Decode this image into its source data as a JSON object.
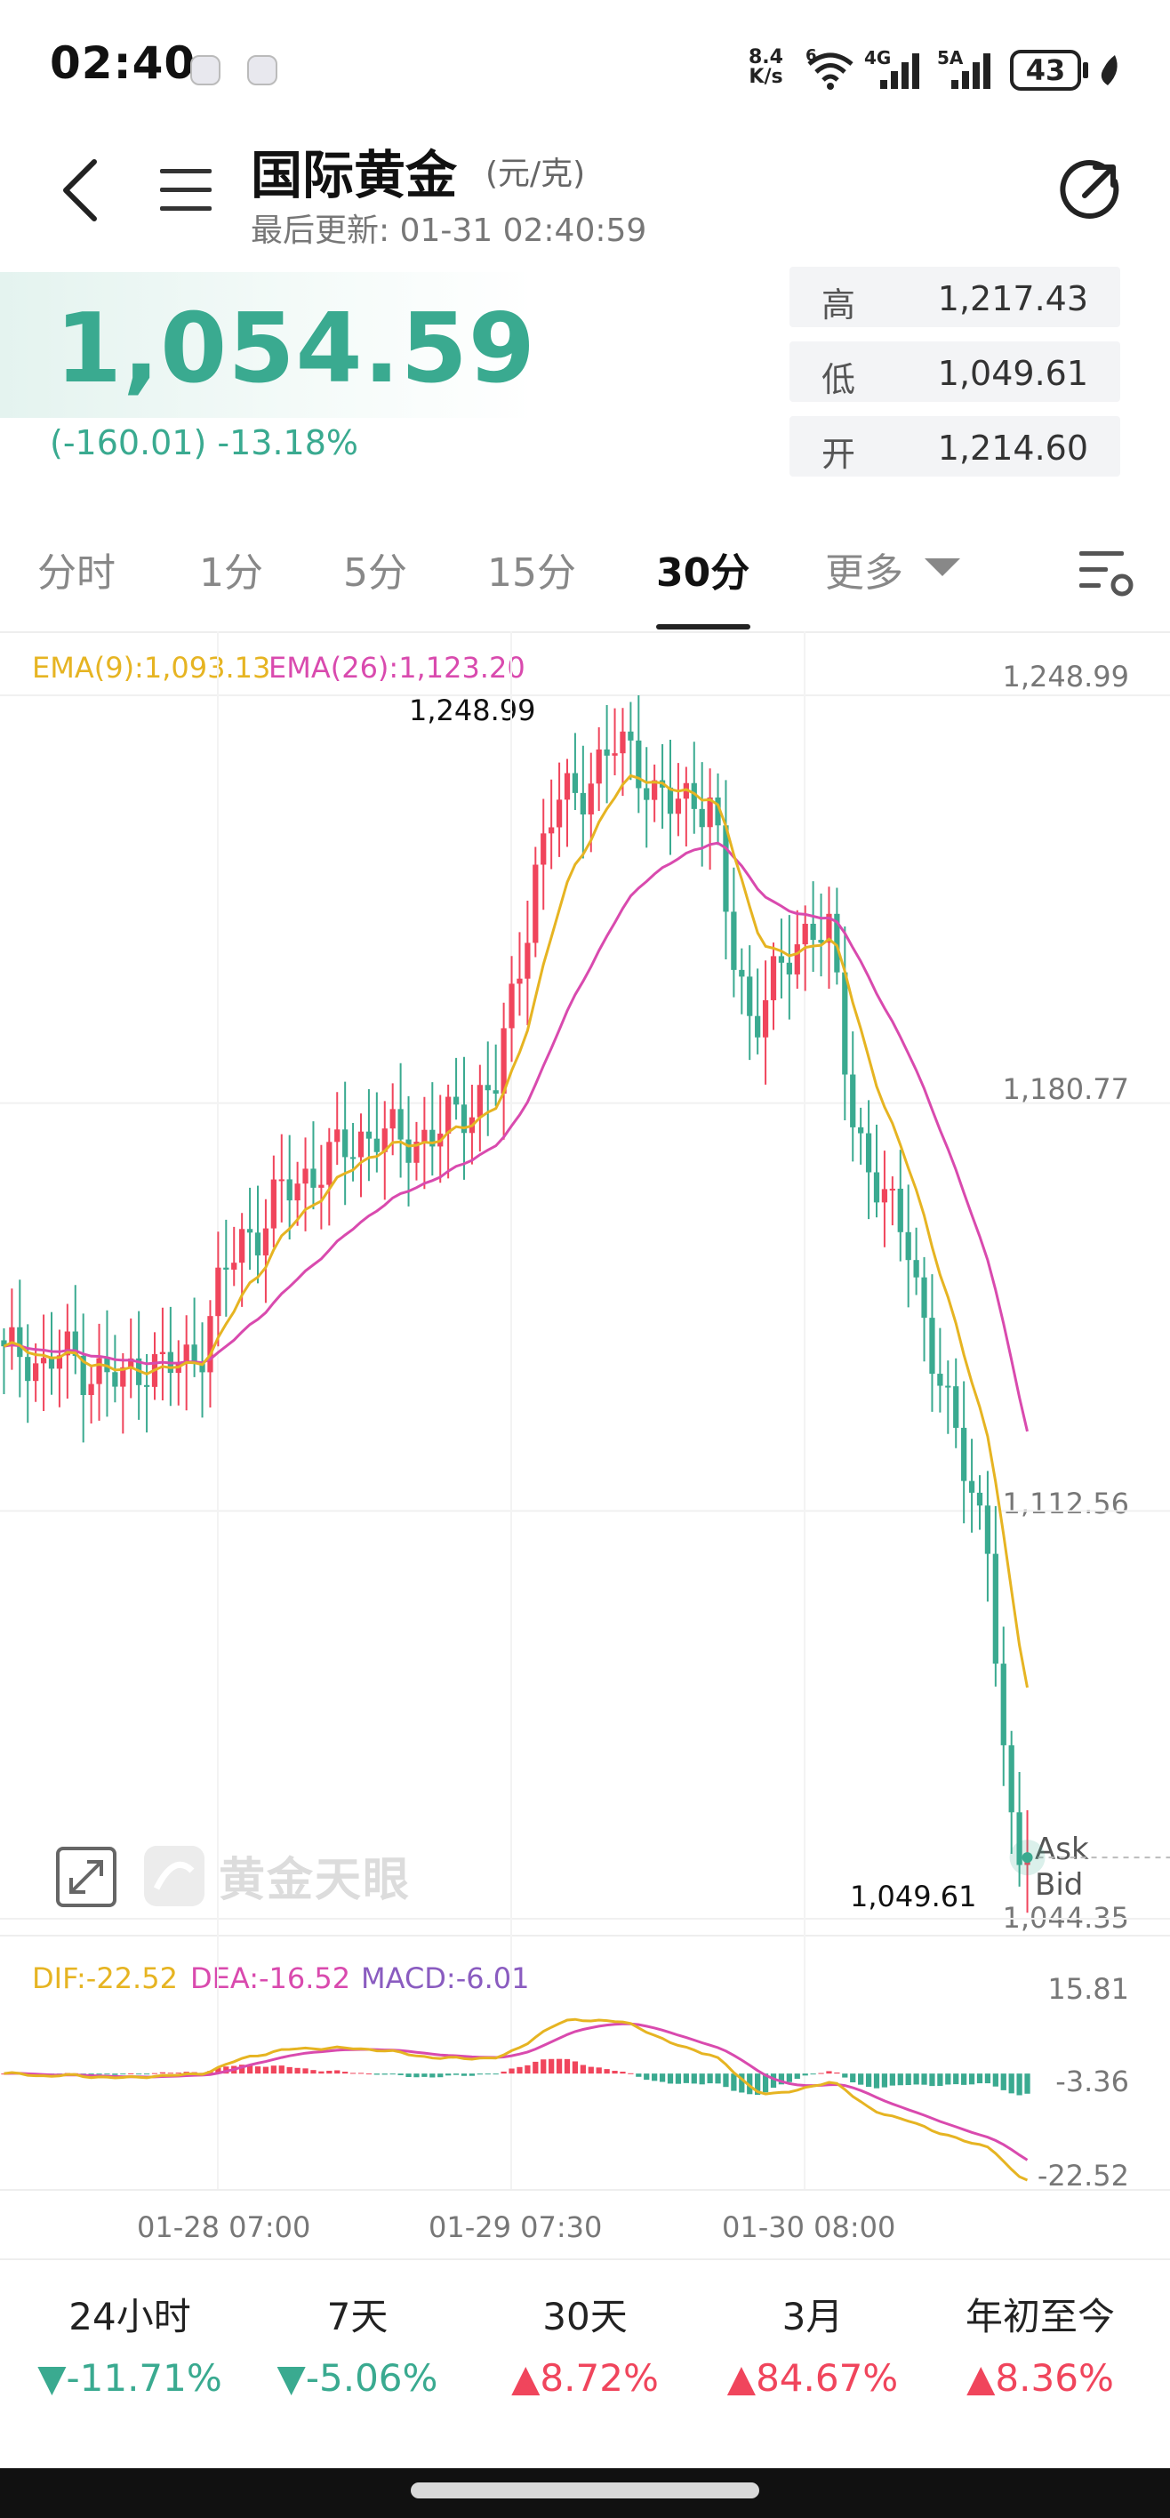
{
  "status_bar": {
    "time": "02:40",
    "net_speed_top": "8.4",
    "net_speed_bottom": "K/s",
    "wifi_badge": "6",
    "cell1_badge": "4G",
    "cell2_badge": "5A",
    "battery": "43"
  },
  "header": {
    "title": "国际黄金",
    "unit": "(元/克)",
    "last_updated": "最后更新: 01-31 02:40:59",
    "icons": [
      "back-icon",
      "menu-icon",
      "share-icon"
    ]
  },
  "quote": {
    "price": "1,054.59",
    "change": "(-160.01)  -13.18%",
    "stats": [
      {
        "label": "高",
        "value": "1,217.43"
      },
      {
        "label": "低",
        "value": "1,049.61"
      },
      {
        "label": "开",
        "value": "1,214.60"
      }
    ]
  },
  "tabs": [
    {
      "label": "分时",
      "active": false
    },
    {
      "label": "1分",
      "active": false
    },
    {
      "label": "5分",
      "active": false
    },
    {
      "label": "15分",
      "active": false
    },
    {
      "label": "30分",
      "active": true
    },
    {
      "label": "更多",
      "active": false
    }
  ],
  "chart": {
    "ema_labels": {
      "ema9": "EMA(9):1,093.13",
      "ema26": "EMA(26):1,123.20"
    },
    "y_axis": [
      "1,248.99",
      "1,180.77",
      "1,112.56",
      "1,044.35"
    ],
    "max_label": "1,248.99",
    "min_label": "1,049.61",
    "ask_label": "Ask",
    "bid_label": "Bid",
    "watermark": "黄金天眼",
    "macd_labels": {
      "dif": "DIF:-22.52",
      "dea": "DEA:-16.52",
      "macd": "MACD:-6.01"
    },
    "macd_axis": [
      "15.81",
      "-3.36",
      "-22.52"
    ],
    "x_axis": [
      "01-28 07:00",
      "01-29 07:30",
      "01-30 08:00"
    ],
    "colors": {
      "up": "#f0455c",
      "down": "#3aaa90",
      "ema9": "#e6b422",
      "ema26": "#d94aae",
      "macd": "#8a5cc0"
    }
  },
  "chart_data": {
    "type": "candlestick",
    "interval": "30分",
    "ylim": [
      1044.35,
      1248.99
    ],
    "max": 1248.99,
    "min": 1049.61,
    "last_close": 1054.59,
    "ema9_last": 1093.13,
    "ema26_last": 1123.2,
    "close_path": [
      1138,
      1140,
      1136,
      1139,
      1137,
      1135,
      1134,
      1138,
      1136,
      1137,
      1140,
      1150,
      1158,
      1160,
      1165,
      1168,
      1170,
      1172,
      1175,
      1176,
      1174,
      1175,
      1176,
      1178,
      1182,
      1184,
      1200,
      1220,
      1230,
      1233,
      1236,
      1240,
      1240,
      1232,
      1230,
      1233,
      1230,
      1205,
      1195,
      1200,
      1205,
      1212,
      1208,
      1180,
      1170,
      1162,
      1158,
      1140,
      1128,
      1120,
      1106,
      1060,
      1054.59
    ],
    "macd": {
      "dif_last": -22.52,
      "dea_last": -16.52,
      "macd_last": -6.01,
      "ylim": [
        -22.52,
        15.81
      ]
    },
    "x_ticks": [
      "01-28 07:00",
      "01-29 07:30",
      "01-30 08:00"
    ]
  },
  "performance": [
    {
      "label": "24小时",
      "value": "-11.71%",
      "dir": "down"
    },
    {
      "label": "7天",
      "value": "-5.06%",
      "dir": "down"
    },
    {
      "label": "30天",
      "value": "8.72%",
      "dir": "up"
    },
    {
      "label": "3月",
      "value": "84.67%",
      "dir": "up"
    },
    {
      "label": "年初至今",
      "value": "8.36%",
      "dir": "up"
    }
  ]
}
